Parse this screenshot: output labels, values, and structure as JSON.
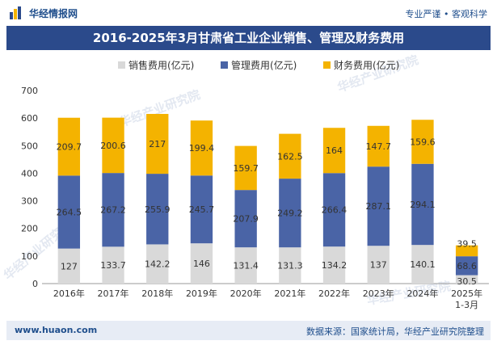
{
  "header": {
    "brand": "华经情报网",
    "tagline": "专业严谨 • 客观科学",
    "title": "2016-2025年3月甘肃省工业企业销售、管理及财务费用"
  },
  "watermark": "华经产业研究院",
  "footer": {
    "url": "www.huaon.com",
    "source": "数据来源：国家统计局，华经产业研究院整理"
  },
  "colors": {
    "sales": "#d9d9d9",
    "management": "#4a64a6",
    "finance": "#f4b300",
    "title_bg": "#2b4a8b"
  },
  "chart_data": {
    "type": "bar",
    "stacked": true,
    "title": "2016-2025年3月甘肃省工业企业销售、管理及财务费用",
    "categories": [
      "2016年",
      "2017年",
      "2018年",
      "2019年",
      "2020年",
      "2021年",
      "2022年",
      "2023年",
      "2024年",
      "2025年 1-3月"
    ],
    "series": [
      {
        "name": "销售费用(亿元)",
        "values": [
          127,
          133.7,
          142.2,
          146,
          131.4,
          131.3,
          134.2,
          137,
          140.1,
          30.5
        ]
      },
      {
        "name": "管理费用(亿元)",
        "values": [
          264.5,
          267.2,
          255.9,
          245.7,
          207.9,
          249.2,
          266.4,
          287.1,
          294.1,
          68.6
        ]
      },
      {
        "name": "财务费用(亿元)",
        "values": [
          209.7,
          200.6,
          217,
          199.4,
          159.7,
          162.5,
          164,
          147.7,
          159.6,
          39.5
        ]
      }
    ],
    "ylim": [
      0,
      700
    ],
    "yticks": [
      0,
      100,
      200,
      300,
      400,
      500,
      600,
      700
    ],
    "xlabel": "",
    "ylabel": "",
    "legend": "top-center"
  }
}
